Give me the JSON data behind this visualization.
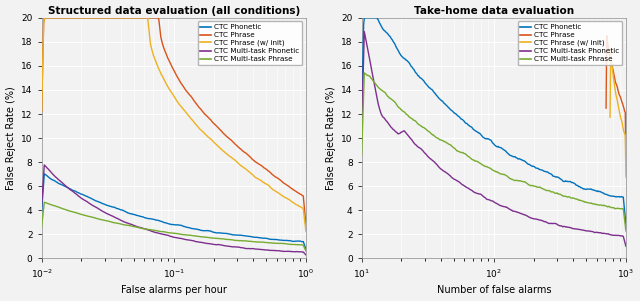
{
  "plot1": {
    "title": "Structured data evaluation (all conditions)",
    "xlabel": "False alarms per hour",
    "ylabel": "False Reject Rate (%)",
    "xlim": [
      0.01,
      1.0
    ],
    "ylim": [
      0,
      20
    ],
    "yticks": [
      0,
      2,
      4,
      6,
      8,
      10,
      12,
      14,
      16,
      18,
      20
    ],
    "colors": {
      "phonetic": "#0072BD",
      "phrase": "#D95319",
      "phrase_init": "#EDB120",
      "multi_phonetic": "#7E2F8E",
      "multi_phrase": "#77AC30"
    },
    "legend": [
      "CTC Phonetic",
      "CTC Phrase",
      "CTC Phrase (w/ init)",
      "CTC Multi-task Phonetic",
      "CTC Multi-task Phrase"
    ]
  },
  "plot2": {
    "title": "Take-home data evaluation",
    "xlabel": "Number of false alarms",
    "ylabel": "False Reject Rate (%)",
    "xlim": [
      10,
      1000
    ],
    "ylim": [
      0,
      20
    ],
    "yticks": [
      0,
      2,
      4,
      6,
      8,
      10,
      12,
      14,
      16,
      18,
      20
    ],
    "colors": {
      "phonetic": "#0072BD",
      "phrase": "#D95319",
      "phrase_init": "#EDB120",
      "multi_phonetic": "#7E2F8E",
      "multi_phrase": "#77AC30"
    },
    "legend": [
      "CTC Phonetic",
      "CTC Phrase",
      "CTC Phrase (w/ init)",
      "CTC Multi-task Phonetic",
      "CTC Multi-task Phrase"
    ]
  },
  "bg_color": "#f2f2f2",
  "grid_color": "#ffffff",
  "linewidth": 1.0
}
